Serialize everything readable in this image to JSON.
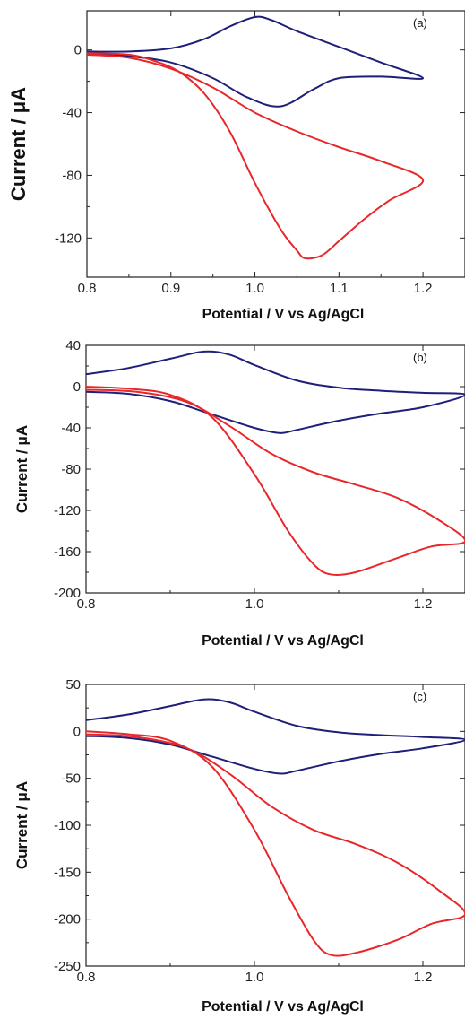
{
  "chart_data": [
    {
      "type": "line",
      "panel_label": "(a)",
      "xlabel": "Potential / V vs Ag/AgCl",
      "ylabel": "Current / μA",
      "xlim": [
        0.8,
        1.25
      ],
      "ylim": [
        -145,
        25
      ],
      "x_ticks": [
        {
          "value": 0.8,
          "label": "0.8"
        },
        {
          "value": 0.9,
          "label": "0.9"
        },
        {
          "value": 1.0,
          "label": "1.0"
        },
        {
          "value": 1.1,
          "label": "1.1"
        },
        {
          "value": 1.2,
          "label": "1.2"
        }
      ],
      "y_ticks": [
        {
          "value": 0,
          "label": "0"
        },
        {
          "value": -40,
          "label": "-40"
        },
        {
          "value": -80,
          "label": "-80"
        },
        {
          "value": -120,
          "label": "-120"
        }
      ],
      "series": [
        {
          "color": "#1f1f7a",
          "points": [
            [
              0.8,
              -1
            ],
            [
              0.85,
              -1
            ],
            [
              0.9,
              1
            ],
            [
              0.94,
              7
            ],
            [
              0.97,
              15
            ],
            [
              1.0,
              21
            ],
            [
              1.02,
              19
            ],
            [
              1.05,
              12
            ],
            [
              1.1,
              2
            ],
            [
              1.15,
              -8
            ],
            [
              1.2,
              -18
            ],
            [
              1.15,
              -17
            ],
            [
              1.1,
              -18
            ],
            [
              1.07,
              -25
            ],
            [
              1.03,
              -36
            ],
            [
              0.99,
              -30
            ],
            [
              0.95,
              -18
            ],
            [
              0.9,
              -8
            ],
            [
              0.85,
              -4
            ],
            [
              0.8,
              -2
            ]
          ]
        },
        {
          "color": "#e8272a",
          "points": [
            [
              0.8,
              -2
            ],
            [
              0.85,
              -3
            ],
            [
              0.88,
              -7
            ],
            [
              0.91,
              -14
            ],
            [
              0.94,
              -28
            ],
            [
              0.97,
              -52
            ],
            [
              1.0,
              -85
            ],
            [
              1.03,
              -114
            ],
            [
              1.05,
              -128
            ],
            [
              1.06,
              -133
            ],
            [
              1.08,
              -131
            ],
            [
              1.1,
              -122
            ],
            [
              1.13,
              -108
            ],
            [
              1.16,
              -96
            ],
            [
              1.2,
              -83
            ],
            [
              1.15,
              -71
            ],
            [
              1.1,
              -62
            ],
            [
              1.05,
              -52
            ],
            [
              1.0,
              -40
            ],
            [
              0.95,
              -24
            ],
            [
              0.9,
              -12
            ],
            [
              0.85,
              -5
            ],
            [
              0.8,
              -3
            ]
          ]
        }
      ]
    },
    {
      "type": "line",
      "panel_label": "(b)",
      "xlabel": "Potential / V vs Ag/AgCl",
      "ylabel": "Current / μA",
      "xlim": [
        0.8,
        1.25
      ],
      "ylim": [
        -200,
        40
      ],
      "x_ticks": [
        {
          "value": 0.8,
          "label": "0.8"
        },
        {
          "value": 1.0,
          "label": "1.0"
        },
        {
          "value": 1.2,
          "label": "1.2"
        }
      ],
      "y_ticks": [
        {
          "value": 40,
          "label": "40"
        },
        {
          "value": 0,
          "label": "0"
        },
        {
          "value": -40,
          "label": "-40"
        },
        {
          "value": -80,
          "label": "-80"
        },
        {
          "value": -120,
          "label": "-120"
        },
        {
          "value": -160,
          "label": "-160"
        },
        {
          "value": -200,
          "label": "-200"
        }
      ],
      "series": [
        {
          "color": "#1f1f7a",
          "points": [
            [
              0.8,
              12
            ],
            [
              0.85,
              18
            ],
            [
              0.9,
              27
            ],
            [
              0.94,
              34
            ],
            [
              0.97,
              31
            ],
            [
              1.0,
              21
            ],
            [
              1.05,
              6
            ],
            [
              1.1,
              -1
            ],
            [
              1.15,
              -4
            ],
            [
              1.2,
              -6
            ],
            [
              1.25,
              -8
            ],
            [
              1.2,
              -20
            ],
            [
              1.15,
              -26
            ],
            [
              1.1,
              -33
            ],
            [
              1.05,
              -42
            ],
            [
              1.03,
              -45
            ],
            [
              1.0,
              -40
            ],
            [
              0.95,
              -27
            ],
            [
              0.9,
              -14
            ],
            [
              0.85,
              -7
            ],
            [
              0.8,
              -5
            ]
          ]
        },
        {
          "color": "#e8272a",
          "points": [
            [
              0.8,
              0
            ],
            [
              0.85,
              -2
            ],
            [
              0.9,
              -8
            ],
            [
              0.95,
              -30
            ],
            [
              1.0,
              -85
            ],
            [
              1.04,
              -140
            ],
            [
              1.07,
              -172
            ],
            [
              1.09,
              -182
            ],
            [
              1.12,
              -180
            ],
            [
              1.17,
              -166
            ],
            [
              1.21,
              -155
            ],
            [
              1.25,
              -150
            ],
            [
              1.22,
              -130
            ],
            [
              1.17,
              -108
            ],
            [
              1.12,
              -95
            ],
            [
              1.07,
              -83
            ],
            [
              1.02,
              -65
            ],
            [
              0.97,
              -38
            ],
            [
              0.92,
              -15
            ],
            [
              0.86,
              -5
            ],
            [
              0.8,
              -3
            ]
          ]
        }
      ]
    },
    {
      "type": "line",
      "panel_label": "(c)",
      "xlabel": "Potential / V vs Ag/AgCl",
      "ylabel": "Current / μA",
      "xlim": [
        0.8,
        1.25
      ],
      "ylim": [
        -250,
        50
      ],
      "x_ticks": [
        {
          "value": 0.8,
          "label": "0.8"
        },
        {
          "value": 1.0,
          "label": "1.0"
        },
        {
          "value": 1.2,
          "label": "1.2"
        }
      ],
      "y_ticks": [
        {
          "value": 50,
          "label": "50"
        },
        {
          "value": 0,
          "label": "0"
        },
        {
          "value": -50,
          "label": "-50"
        },
        {
          "value": -100,
          "label": "-100"
        },
        {
          "value": -150,
          "label": "-150"
        },
        {
          "value": -200,
          "label": "-200"
        },
        {
          "value": -250,
          "label": "-250"
        }
      ],
      "series": [
        {
          "color": "#1f1f7a",
          "points": [
            [
              0.8,
              12
            ],
            [
              0.85,
              18
            ],
            [
              0.9,
              27
            ],
            [
              0.94,
              34
            ],
            [
              0.97,
              31
            ],
            [
              1.0,
              21
            ],
            [
              1.05,
              6
            ],
            [
              1.1,
              -1
            ],
            [
              1.15,
              -4
            ],
            [
              1.2,
              -6
            ],
            [
              1.25,
              -9
            ],
            [
              1.2,
              -18
            ],
            [
              1.15,
              -24
            ],
            [
              1.1,
              -32
            ],
            [
              1.05,
              -42
            ],
            [
              1.03,
              -45
            ],
            [
              1.0,
              -40
            ],
            [
              0.95,
              -27
            ],
            [
              0.9,
              -14
            ],
            [
              0.85,
              -7
            ],
            [
              0.8,
              -5
            ]
          ]
        },
        {
          "color": "#e8272a",
          "points": [
            [
              0.8,
              0
            ],
            [
              0.85,
              -3
            ],
            [
              0.9,
              -10
            ],
            [
              0.95,
              -38
            ],
            [
              1.0,
              -105
            ],
            [
              1.04,
              -175
            ],
            [
              1.07,
              -222
            ],
            [
              1.09,
              -238
            ],
            [
              1.12,
              -236
            ],
            [
              1.17,
              -222
            ],
            [
              1.21,
              -205
            ],
            [
              1.25,
              -195
            ],
            [
              1.22,
              -170
            ],
            [
              1.17,
              -140
            ],
            [
              1.12,
              -120
            ],
            [
              1.07,
              -105
            ],
            [
              1.02,
              -80
            ],
            [
              0.97,
              -45
            ],
            [
              0.92,
              -18
            ],
            [
              0.86,
              -6
            ],
            [
              0.8,
              -3
            ]
          ]
        }
      ]
    }
  ]
}
